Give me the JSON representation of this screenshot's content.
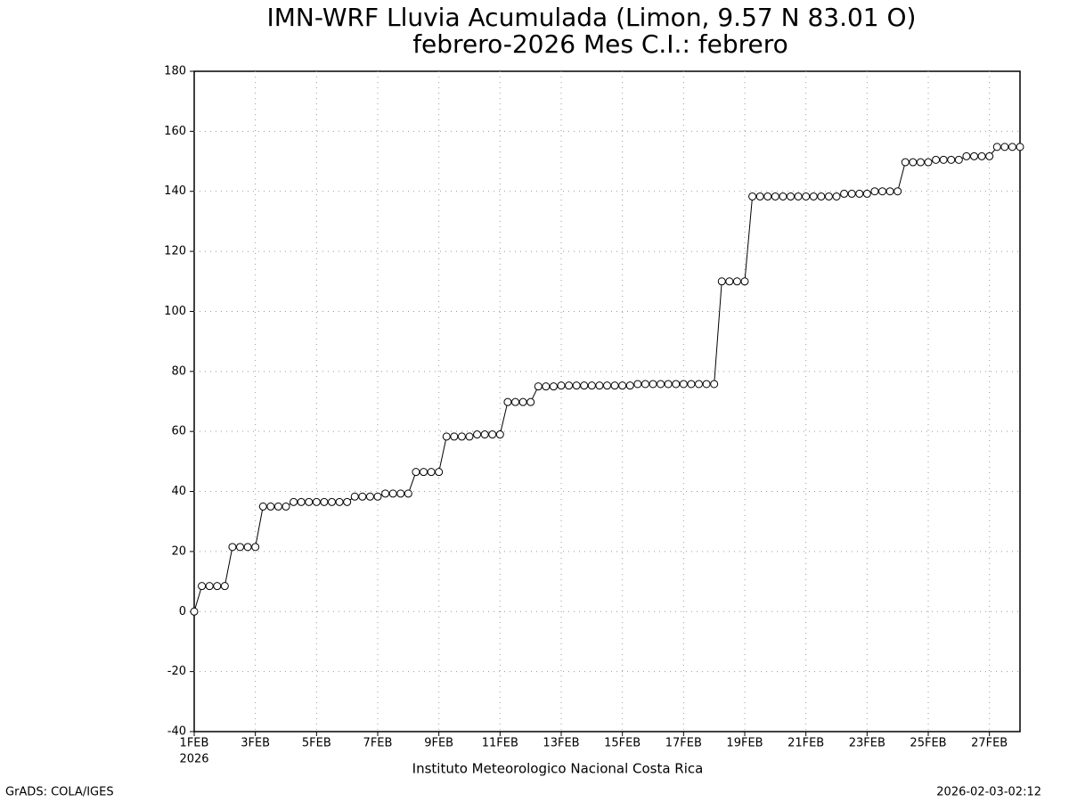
{
  "chart_data": {
    "type": "line",
    "title": "IMN-WRF  Lluvia Acumulada (Limon, 9.57  N 83.01  O)",
    "subtitle": "febrero-2026 Mes C.I.: febrero",
    "x_year_label": "2026",
    "footer": "Instituto Meteorologico Nacional Costa Rica",
    "credit": "GrADS: COLA/IGES",
    "timestamp": "2026-02-03-02:12",
    "categories": [
      "1FEB",
      null,
      null,
      null,
      null,
      null,
      null,
      null,
      "3FEB",
      null,
      null,
      null,
      null,
      null,
      null,
      null,
      "5FEB",
      null,
      null,
      null,
      null,
      null,
      null,
      null,
      "7FEB",
      null,
      null,
      null,
      null,
      null,
      null,
      null,
      "9FEB",
      null,
      null,
      null,
      null,
      null,
      null,
      null,
      "11FEB",
      null,
      null,
      null,
      null,
      null,
      null,
      null,
      "13FEB",
      null,
      null,
      null,
      null,
      null,
      null,
      null,
      "15FEB",
      null,
      null,
      null,
      null,
      null,
      null,
      null,
      "17FEB",
      null,
      null,
      null,
      null,
      null,
      null,
      null,
      "19FEB",
      null,
      null,
      null,
      null,
      null,
      null,
      null,
      "21FEB",
      null,
      null,
      null,
      null,
      null,
      null,
      null,
      "23FEB",
      null,
      null,
      null,
      null,
      null,
      null,
      null,
      "25FEB",
      null,
      null,
      null,
      null,
      null,
      null,
      null,
      "27FEB",
      null,
      null,
      null,
      null
    ],
    "series": [
      {
        "color": "#000000",
        "values": [
          0,
          8.5,
          8.5,
          8.5,
          8.5,
          21.5,
          21.5,
          21.5,
          21.5,
          35,
          35,
          35,
          35,
          36.5,
          36.5,
          36.5,
          36.5,
          36.5,
          36.5,
          36.5,
          36.5,
          38.3,
          38.3,
          38.3,
          38.3,
          39.3,
          39.3,
          39.3,
          39.3,
          46.5,
          46.5,
          46.5,
          46.5,
          58.3,
          58.3,
          58.3,
          58.3,
          59,
          59,
          59,
          59,
          69.8,
          69.8,
          69.8,
          69.8,
          75,
          75,
          75,
          75.3,
          75.3,
          75.3,
          75.3,
          75.3,
          75.3,
          75.3,
          75.3,
          75.3,
          75.3,
          75.8,
          75.8,
          75.8,
          75.8,
          75.8,
          75.8,
          75.8,
          75.8,
          75.8,
          75.8,
          75.8,
          110,
          110,
          110,
          110,
          138.3,
          138.3,
          138.3,
          138.3,
          138.3,
          138.3,
          138.3,
          138.3,
          138.3,
          138.3,
          138.3,
          138.3,
          139.2,
          139.2,
          139.2,
          139.2,
          140,
          140,
          140,
          140,
          149.7,
          149.7,
          149.7,
          149.7,
          150.5,
          150.5,
          150.5,
          150.5,
          151.7,
          151.7,
          151.7,
          151.7,
          154.8,
          154.8,
          154.8,
          154.8
        ]
      }
    ],
    "ylim": [
      -40,
      180
    ],
    "yticks": [
      -40,
      -20,
      0,
      20,
      40,
      60,
      80,
      100,
      120,
      140,
      160,
      180
    ],
    "grid": true
  }
}
